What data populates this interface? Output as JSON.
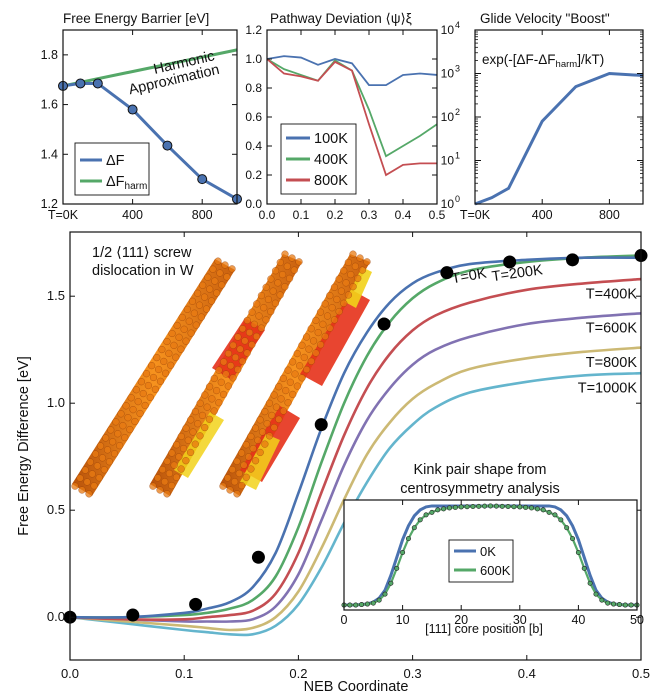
{
  "colors": {
    "blue": "#4a72b0",
    "green": "#55a868",
    "red": "#c44e52",
    "purple": "#8172b2",
    "tan": "#ccb974",
    "cyan": "#64b5cd",
    "marker_blue": "#4a72b0",
    "marker_black": "#000000"
  },
  "chart_data": [
    {
      "id": "free_energy_barrier",
      "type": "line",
      "title": "Free Energy Barrier [eV]",
      "x_tick_labels": [
        "T=0K",
        "400",
        "800"
      ],
      "y_tick_labels": [
        "1.2",
        "1.4",
        "1.6",
        "1.8"
      ],
      "xlim": [
        0,
        1000
      ],
      "ylim": [
        1.2,
        1.9
      ],
      "annotation": [
        "Harmonic",
        "Approximation"
      ],
      "series": [
        {
          "name": "ΔF",
          "legend_main": "ΔF",
          "legend_sub": "",
          "color": "#4a72b0",
          "markers": true,
          "x": [
            0,
            100,
            200,
            400,
            600,
            800,
            1000
          ],
          "y": [
            1.675,
            1.685,
            1.685,
            1.58,
            1.435,
            1.3,
            1.22
          ]
        },
        {
          "name": "ΔFharm",
          "legend_main": "ΔF",
          "legend_sub": "harm",
          "color": "#55a868",
          "markers": false,
          "x": [
            0,
            1000
          ],
          "y": [
            1.675,
            1.82
          ]
        }
      ]
    },
    {
      "id": "pathway_deviation",
      "type": "line",
      "title": "Pathway Deviation ⟨ψ⟩ξ",
      "x_tick_labels": [
        "0.0",
        "0.1",
        "0.2",
        "0.3",
        "0.4",
        "0.5"
      ],
      "y_tick_labels": [
        "0.0",
        "0.2",
        "0.4",
        "0.6",
        "0.8",
        "1.0",
        "1.2"
      ],
      "xlim": [
        0,
        0.5
      ],
      "ylim": [
        0,
        1.2
      ],
      "series": [
        {
          "name": "100K",
          "color": "#4a72b0",
          "x": [
            0,
            0.05,
            0.1,
            0.15,
            0.2,
            0.25,
            0.3,
            0.35,
            0.4,
            0.45,
            0.5
          ],
          "y": [
            1.0,
            1.02,
            1.01,
            0.96,
            1.0,
            0.97,
            0.82,
            0.82,
            0.89,
            0.9,
            0.89
          ]
        },
        {
          "name": "400K",
          "color": "#55a868",
          "x": [
            0,
            0.05,
            0.1,
            0.15,
            0.2,
            0.25,
            0.3,
            0.35,
            0.4,
            0.45,
            0.5
          ],
          "y": [
            1.0,
            0.93,
            0.89,
            0.85,
            0.99,
            0.92,
            0.65,
            0.33,
            0.4,
            0.47,
            0.55
          ]
        },
        {
          "name": "800K",
          "color": "#c44e52",
          "x": [
            0,
            0.05,
            0.1,
            0.15,
            0.2,
            0.25,
            0.3,
            0.35,
            0.4,
            0.45,
            0.5
          ],
          "y": [
            1.0,
            0.9,
            0.88,
            0.85,
            0.98,
            0.92,
            0.55,
            0.2,
            0.27,
            0.28,
            0.28
          ]
        }
      ]
    },
    {
      "id": "glide_velocity_boost",
      "type": "line",
      "title": "Glide Velocity \"Boost\"",
      "x_tick_labels": [
        "T=0K",
        "400",
        "800"
      ],
      "y_tick_exponents": [
        "0",
        "1",
        "2",
        "3",
        "4"
      ],
      "y_scale": "log",
      "xlim": [
        0,
        1000
      ],
      "ylim": [
        1,
        10000
      ],
      "annotation_main": "exp(-[ΔF-ΔF",
      "annotation_sub": "harm",
      "annotation_tail": "]/kT)",
      "series": [
        {
          "name": "",
          "color": "#4a72b0",
          "x": [
            0,
            100,
            200,
            400,
            600,
            800,
            1000
          ],
          "y": [
            1,
            1.4,
            2.3,
            80,
            500,
            1000,
            900
          ]
        }
      ]
    },
    {
      "id": "free_energy_difference",
      "type": "line",
      "xlabel": "NEB Coordinate",
      "ylabel": "Free Energy Difference [eV]",
      "x_tick_labels": [
        "0.0",
        "0.1",
        "0.2",
        "0.3",
        "0.4",
        "0.5"
      ],
      "y_tick_labels": [
        "0.0",
        "0.5",
        "1.0",
        "1.5"
      ],
      "xlim": [
        0,
        0.5
      ],
      "ylim": [
        -0.2,
        1.8
      ],
      "annotation": [
        "1/2 ⟨111⟩ screw",
        "dislocation in W"
      ],
      "series": [
        {
          "name": "T=0K",
          "color": "#4a72b0",
          "x": [
            0,
            0.05,
            0.1,
            0.12,
            0.14,
            0.16,
            0.18,
            0.2,
            0.22,
            0.24,
            0.26,
            0.28,
            0.3,
            0.32,
            0.35,
            0.4,
            0.45,
            0.5
          ],
          "y": [
            0,
            0.0,
            0.02,
            0.04,
            0.07,
            0.14,
            0.3,
            0.58,
            0.88,
            1.14,
            1.33,
            1.47,
            1.56,
            1.61,
            1.65,
            1.67,
            1.68,
            1.68
          ]
        },
        {
          "name": "T=200K",
          "color": "#55a868",
          "x": [
            0,
            0.05,
            0.1,
            0.12,
            0.14,
            0.16,
            0.18,
            0.2,
            0.22,
            0.24,
            0.26,
            0.28,
            0.3,
            0.32,
            0.35,
            0.4,
            0.45,
            0.5
          ],
          "y": [
            0,
            0.0,
            0.01,
            0.02,
            0.04,
            0.08,
            0.19,
            0.42,
            0.72,
            1.0,
            1.22,
            1.38,
            1.49,
            1.56,
            1.62,
            1.66,
            1.68,
            1.69
          ]
        },
        {
          "name": "T=400K",
          "color": "#c44e52",
          "x": [
            0,
            0.05,
            0.1,
            0.12,
            0.14,
            0.16,
            0.18,
            0.2,
            0.22,
            0.24,
            0.26,
            0.28,
            0.3,
            0.32,
            0.35,
            0.4,
            0.45,
            0.5
          ],
          "y": [
            0,
            -0.01,
            -0.01,
            0.0,
            0.01,
            0.03,
            0.11,
            0.3,
            0.58,
            0.85,
            1.07,
            1.23,
            1.34,
            1.41,
            1.47,
            1.53,
            1.56,
            1.58
          ]
        },
        {
          "name": "T=600K",
          "color": "#8172b2",
          "x": [
            0,
            0.05,
            0.1,
            0.12,
            0.14,
            0.16,
            0.18,
            0.2,
            0.22,
            0.24,
            0.26,
            0.28,
            0.3,
            0.32,
            0.35,
            0.4,
            0.45,
            0.5
          ],
          "y": [
            0,
            -0.01,
            -0.02,
            -0.02,
            -0.02,
            -0.01,
            0.05,
            0.2,
            0.45,
            0.71,
            0.92,
            1.07,
            1.18,
            1.25,
            1.31,
            1.37,
            1.4,
            1.42
          ]
        },
        {
          "name": "T=800K",
          "color": "#ccb974",
          "x": [
            0,
            0.05,
            0.1,
            0.12,
            0.14,
            0.16,
            0.18,
            0.2,
            0.22,
            0.24,
            0.26,
            0.28,
            0.3,
            0.32,
            0.35,
            0.4,
            0.45,
            0.5
          ],
          "y": [
            0,
            -0.02,
            -0.04,
            -0.05,
            -0.06,
            -0.05,
            0.0,
            0.12,
            0.32,
            0.55,
            0.76,
            0.91,
            1.02,
            1.09,
            1.16,
            1.21,
            1.24,
            1.26
          ]
        },
        {
          "name": "T=1000K",
          "color": "#64b5cd",
          "x": [
            0,
            0.05,
            0.1,
            0.12,
            0.14,
            0.16,
            0.18,
            0.2,
            0.22,
            0.24,
            0.26,
            0.28,
            0.3,
            0.32,
            0.35,
            0.4,
            0.45,
            0.5
          ],
          "y": [
            0,
            -0.03,
            -0.06,
            -0.07,
            -0.08,
            -0.08,
            -0.04,
            0.06,
            0.23,
            0.44,
            0.63,
            0.79,
            0.9,
            0.98,
            1.05,
            1.1,
            1.13,
            1.14
          ]
        },
        {
          "name": "",
          "type": "scatter",
          "color": "#000000",
          "x": [
            0,
            0.055,
            0.11,
            0.165,
            0.22,
            0.275,
            0.33,
            0.385,
            0.44,
            0.5
          ],
          "y": [
            0,
            0.01,
            0.06,
            0.28,
            0.9,
            1.37,
            1.61,
            1.66,
            1.67,
            1.69
          ]
        }
      ]
    },
    {
      "id": "kink_pair_shape",
      "type": "line",
      "title": [
        "Kink pair shape from",
        "centrosymmetry analysis"
      ],
      "xlabel": "[111] core position [b]",
      "x_tick_labels": [
        "0",
        "10",
        "20",
        "30",
        "40",
        "50"
      ],
      "xlim": [
        0,
        50
      ],
      "ylim": [
        0,
        1
      ],
      "series": [
        {
          "name": "0K",
          "color": "#4a72b0",
          "x": [
            0,
            2,
            4,
            5,
            6,
            7,
            8,
            9,
            10,
            11,
            12,
            13,
            14,
            15,
            35,
            36,
            37,
            38,
            39,
            40,
            41,
            42,
            43,
            44,
            45,
            46,
            48,
            50
          ],
          "y": [
            0,
            0,
            0.01,
            0.03,
            0.07,
            0.15,
            0.3,
            0.48,
            0.66,
            0.8,
            0.9,
            0.96,
            0.99,
            1.0,
            1.0,
            0.99,
            0.96,
            0.9,
            0.8,
            0.66,
            0.48,
            0.3,
            0.15,
            0.07,
            0.03,
            0.01,
            0,
            0
          ]
        },
        {
          "name": "600K",
          "color": "#55a868",
          "x": [
            0,
            2,
            4,
            5,
            6,
            7,
            8,
            9,
            10,
            11,
            12,
            13,
            14,
            16,
            18,
            20,
            25,
            30,
            32,
            34,
            36,
            37,
            38,
            39,
            40,
            41,
            42,
            43,
            44,
            45,
            46,
            48,
            50
          ],
          "y": [
            0,
            0,
            0.01,
            0.02,
            0.05,
            0.11,
            0.22,
            0.37,
            0.53,
            0.67,
            0.78,
            0.86,
            0.91,
            0.96,
            0.98,
            0.99,
            1.0,
            0.99,
            0.98,
            0.96,
            0.91,
            0.86,
            0.78,
            0.67,
            0.53,
            0.37,
            0.22,
            0.11,
            0.05,
            0.02,
            0.01,
            0,
            0
          ]
        }
      ]
    }
  ]
}
